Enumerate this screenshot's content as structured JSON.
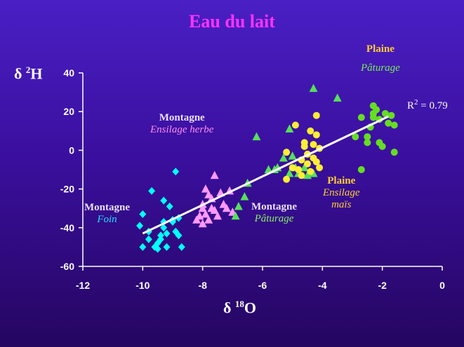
{
  "chart_data": {
    "type": "scatter",
    "title": "Eau du lait",
    "ylabel": "δ 2H",
    "xlabel": "δ 18O",
    "xlim": [
      -12,
      0
    ],
    "ylim": [
      -60,
      40
    ],
    "xticks": [
      -12,
      -10,
      -8,
      -6,
      -4,
      -2,
      0
    ],
    "yticks": [
      -60,
      -40,
      -20,
      0,
      20,
      40
    ],
    "grid": false,
    "colors": {
      "foin": "#00ffff",
      "ensilage_herbe": "#ff99ff",
      "paturage_montagne": "#55e05a",
      "ensilage_mais": "#ffee33",
      "paturage_plaine": "#66dd22",
      "regression": "#ffffff"
    },
    "series": [
      {
        "key": "foin",
        "marker": "diamond",
        "points": [
          [
            -10.0,
            -33
          ],
          [
            -10.1,
            -39
          ],
          [
            -10.0,
            -50
          ],
          [
            -9.7,
            -21
          ],
          [
            -9.8,
            -42
          ],
          [
            -9.8,
            -46
          ],
          [
            -9.6,
            -50
          ],
          [
            -9.5,
            -51
          ],
          [
            -9.5,
            -48
          ],
          [
            -9.4,
            -46
          ],
          [
            -9.4,
            -44
          ],
          [
            -9.3,
            -40
          ],
          [
            -9.3,
            -37
          ],
          [
            -9.2,
            -43
          ],
          [
            -9.3,
            -26
          ],
          [
            -9.1,
            -29
          ],
          [
            -9.2,
            -50
          ],
          [
            -9.0,
            -36
          ],
          [
            -8.9,
            -11
          ],
          [
            -8.9,
            -42
          ],
          [
            -8.8,
            -44
          ],
          [
            -8.8,
            -35
          ],
          [
            -8.7,
            -50
          ],
          [
            -9.0,
            -37
          ]
        ]
      },
      {
        "key": "ensilage_herbe",
        "marker": "triangle",
        "points": [
          [
            -7.6,
            -13
          ],
          [
            -7.9,
            -20
          ],
          [
            -7.8,
            -23
          ],
          [
            -7.7,
            -25
          ],
          [
            -8.0,
            -28
          ],
          [
            -8.0,
            -30
          ],
          [
            -7.9,
            -33
          ],
          [
            -7.7,
            -30
          ],
          [
            -7.6,
            -31
          ],
          [
            -7.5,
            -34
          ],
          [
            -8.1,
            -34
          ],
          [
            -8.2,
            -36
          ],
          [
            -8.0,
            -38
          ],
          [
            -7.4,
            -22
          ],
          [
            -7.3,
            -28
          ],
          [
            -7.1,
            -21
          ],
          [
            -7.2,
            -30
          ],
          [
            -7.0,
            -32
          ],
          [
            -7.8,
            -36
          ]
        ]
      },
      {
        "key": "paturage_montagne",
        "marker": "triangle",
        "points": [
          [
            -6.8,
            -29
          ],
          [
            -6.9,
            -34
          ],
          [
            -6.6,
            -24
          ],
          [
            -6.5,
            -17
          ],
          [
            -6.2,
            7
          ],
          [
            -5.8,
            -10
          ],
          [
            -5.6,
            -10
          ],
          [
            -5.5,
            -9
          ],
          [
            -5.3,
            -4
          ],
          [
            -5.1,
            11
          ],
          [
            -5.0,
            -3
          ],
          [
            -4.9,
            -9
          ],
          [
            -4.8,
            -12
          ],
          [
            -4.6,
            -9
          ],
          [
            -4.5,
            -13
          ],
          [
            -4.3,
            -12
          ],
          [
            -4.3,
            32
          ],
          [
            -3.5,
            27
          ],
          [
            -5.1,
            -12
          ]
        ]
      },
      {
        "key": "ensilage_mais",
        "marker": "circle",
        "points": [
          [
            -5.2,
            -15
          ],
          [
            -5.2,
            -1
          ],
          [
            -5.0,
            -9
          ],
          [
            -4.9,
            13
          ],
          [
            -4.8,
            -10
          ],
          [
            -4.7,
            -5
          ],
          [
            -4.6,
            2
          ],
          [
            -4.6,
            4
          ],
          [
            -4.5,
            -2
          ],
          [
            -4.5,
            -7
          ],
          [
            -4.4,
            -11
          ],
          [
            -4.3,
            -4
          ],
          [
            -4.3,
            3
          ],
          [
            -4.2,
            8
          ],
          [
            -4.2,
            -6
          ],
          [
            -4.1,
            -9
          ],
          [
            -4.1,
            1
          ],
          [
            -4.2,
            18
          ],
          [
            -4.4,
            10
          ],
          [
            -4.7,
            -13
          ]
        ]
      },
      {
        "key": "paturage_plaine",
        "marker": "circle",
        "points": [
          [
            -2.7,
            -10
          ],
          [
            -2.7,
            17
          ],
          [
            -2.5,
            7
          ],
          [
            -2.5,
            4
          ],
          [
            -2.4,
            12
          ],
          [
            -2.3,
            23
          ],
          [
            -2.2,
            21
          ],
          [
            -2.3,
            17
          ],
          [
            -2.1,
            16
          ],
          [
            -2.1,
            4
          ],
          [
            -2.0,
            2
          ],
          [
            -1.9,
            19
          ],
          [
            -1.8,
            14
          ],
          [
            -1.7,
            18
          ],
          [
            -1.6,
            -1
          ],
          [
            -1.6,
            13
          ],
          [
            -2.9,
            7
          ],
          [
            -2.3,
            19
          ]
        ]
      }
    ],
    "regression": {
      "x1": -10.0,
      "y1": -43,
      "x2": -1.8,
      "y2": 17.5,
      "label": "R",
      "sup": "2",
      "value": "=  0.79"
    },
    "annotations": [
      {
        "key": "foin",
        "line1": "Montagne",
        "line2": "Foin"
      },
      {
        "key": "ensilage_herbe",
        "line1": "Montagne",
        "line2": "Ensilage herbe"
      },
      {
        "key": "paturage_montagne",
        "line1": "Montagne",
        "line2": "Pâturage"
      },
      {
        "key": "ensilage_mais",
        "line1": "Plaine",
        "line2": "Ensilage",
        "line3": "maïs"
      },
      {
        "key": "paturage_plaine",
        "line1": "Plaine",
        "line2": "Pâturage"
      }
    ]
  }
}
